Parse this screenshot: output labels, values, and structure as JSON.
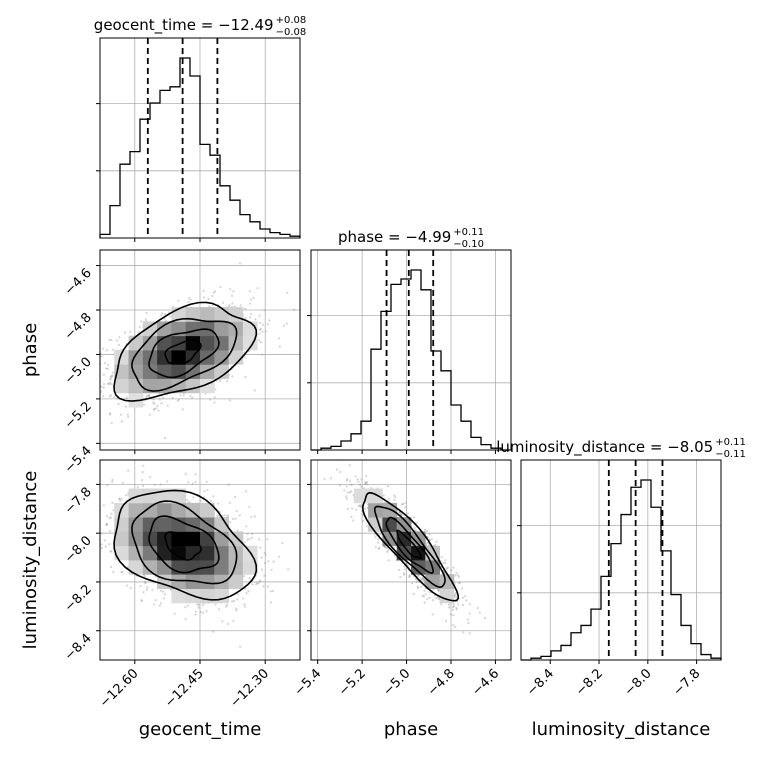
{
  "chart_data": {
    "type": "corner",
    "parameters": [
      "geocent_time",
      "phase",
      "luminosity_distance"
    ],
    "titles": [
      {
        "text": "geocent_time = −12.49",
        "sup": "+0.08",
        "sub": "−0.08"
      },
      {
        "text": "phase = −4.99",
        "sup": "+0.11",
        "sub": "−0.10"
      },
      {
        "text": "luminosity_distance = −8.05",
        "sup": "+0.11",
        "sub": "−0.11"
      }
    ],
    "axes": {
      "geocent_time": {
        "range": [
          -12.68,
          -12.22
        ],
        "ticks": [
          -12.6,
          -12.45,
          -12.3
        ],
        "tick_labels": [
          "−12.60",
          "−12.45",
          "−12.30"
        ]
      },
      "phase": {
        "range": [
          -5.43,
          -4.53
        ],
        "ticks": [
          -5.4,
          -5.2,
          -5.0,
          -4.8,
          -4.6
        ],
        "tick_labels": [
          "−5.4",
          "−5.2",
          "−5.0",
          "−4.8",
          "−4.6"
        ]
      },
      "luminosity_distance": {
        "range": [
          -8.52,
          -7.7
        ],
        "ticks": [
          -8.4,
          -8.2,
          -8.0,
          -7.8
        ],
        "tick_labels": [
          "−8.4",
          "−8.2",
          "−8.0",
          "−7.8"
        ]
      }
    },
    "quantiles": {
      "geocent_time": [
        -12.57,
        -12.49,
        -12.41
      ],
      "phase": [
        -5.09,
        -4.99,
        -4.88
      ],
      "luminosity_distance": [
        -8.16,
        -8.05,
        -7.94
      ]
    },
    "histograms": {
      "geocent_time": {
        "bin_edges": [
          -12.68,
          -12.657,
          -12.634,
          -12.611,
          -12.588,
          -12.565,
          -12.542,
          -12.519,
          -12.496,
          -12.473,
          -12.45,
          -12.427,
          -12.404,
          -12.381,
          -12.358,
          -12.335,
          -12.312,
          -12.289,
          -12.266,
          -12.243,
          -12.22
        ],
        "counts": [
          2,
          18,
          41,
          48,
          66,
          75,
          82,
          84,
          100,
          90,
          52,
          46,
          29,
          21,
          13,
          9,
          5,
          3,
          2,
          1
        ]
      },
      "phase": {
        "bin_edges": [
          -5.43,
          -5.385,
          -5.34,
          -5.295,
          -5.25,
          -5.205,
          -5.16,
          -5.115,
          -5.07,
          -5.025,
          -4.98,
          -4.935,
          -4.89,
          -4.845,
          -4.8,
          -4.755,
          -4.71,
          -4.665,
          -4.62,
          -4.575,
          -4.53
        ],
        "counts": [
          0,
          1,
          2,
          5,
          9,
          16,
          56,
          77,
          92,
          95,
          100,
          89,
          55,
          44,
          25,
          16,
          7,
          3,
          1,
          0
        ]
      },
      "luminosity_distance": {
        "bin_edges": [
          -8.52,
          -8.479,
          -8.438,
          -8.397,
          -8.356,
          -8.315,
          -8.274,
          -8.233,
          -8.192,
          -8.151,
          -8.11,
          -8.069,
          -8.028,
          -7.987,
          -7.946,
          -7.905,
          -7.864,
          -7.823,
          -7.782,
          -7.741,
          -7.7
        ],
        "counts": [
          0,
          1,
          2,
          5,
          8,
          15,
          19,
          28,
          46,
          64,
          80,
          95,
          99,
          84,
          60,
          36,
          19,
          9,
          3,
          1
        ]
      }
    },
    "joint": [
      {
        "x": "geocent_time",
        "y": "phase",
        "mean": [
          -12.49,
          -4.99
        ],
        "sd": [
          0.08,
          0.105
        ],
        "rho": 0.45
      },
      {
        "x": "geocent_time",
        "y": "luminosity_distance",
        "mean": [
          -12.49,
          -8.05
        ],
        "sd": [
          0.08,
          0.11
        ],
        "rho": -0.35
      },
      {
        "x": "phase",
        "y": "luminosity_distance",
        "mean": [
          -4.99,
          -8.05
        ],
        "sd": [
          0.105,
          0.11
        ],
        "rho": -0.88
      }
    ],
    "colors": {
      "line": "#000000",
      "points": "#888888",
      "grid": "#b0b0b0"
    },
    "grid": true
  }
}
